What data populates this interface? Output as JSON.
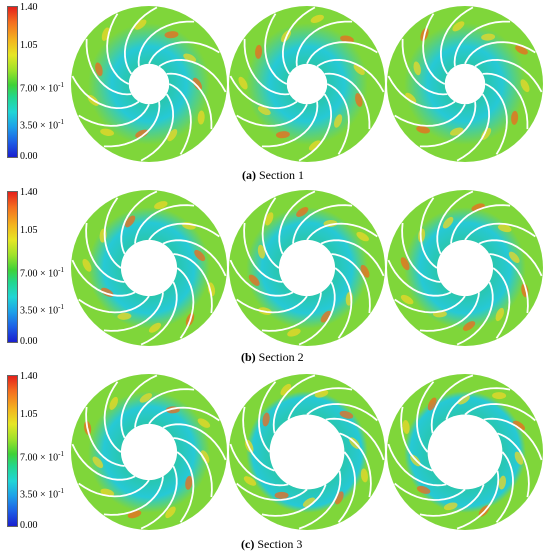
{
  "colorbar": {
    "ticks": [
      "1.40",
      "1.05",
      "7.00 × 10",
      "-1",
      "3.50 × 10",
      "-1",
      "0.00"
    ],
    "colors": [
      "#e4201a",
      "#f46d1f",
      "#f3b41f",
      "#e6e626",
      "#9fe22a",
      "#3fd238",
      "#22d68d",
      "#21d5d5",
      "#1ea0e8",
      "#1d5fe6",
      "#1a1fcf"
    ]
  },
  "panels": [
    {
      "caption_letter": "(a)",
      "caption_text": " Section 1"
    },
    {
      "caption_letter": "(b)",
      "caption_text": " Section 2"
    },
    {
      "caption_letter": "(c)",
      "caption_text": " Section 3"
    }
  ],
  "contour_colors": {
    "base": "#7fd63a",
    "hub_zone": "#2ac6a8",
    "warm": "#e9d72a",
    "hot": "#ee6a1f",
    "cool": "#26c9d6"
  }
}
